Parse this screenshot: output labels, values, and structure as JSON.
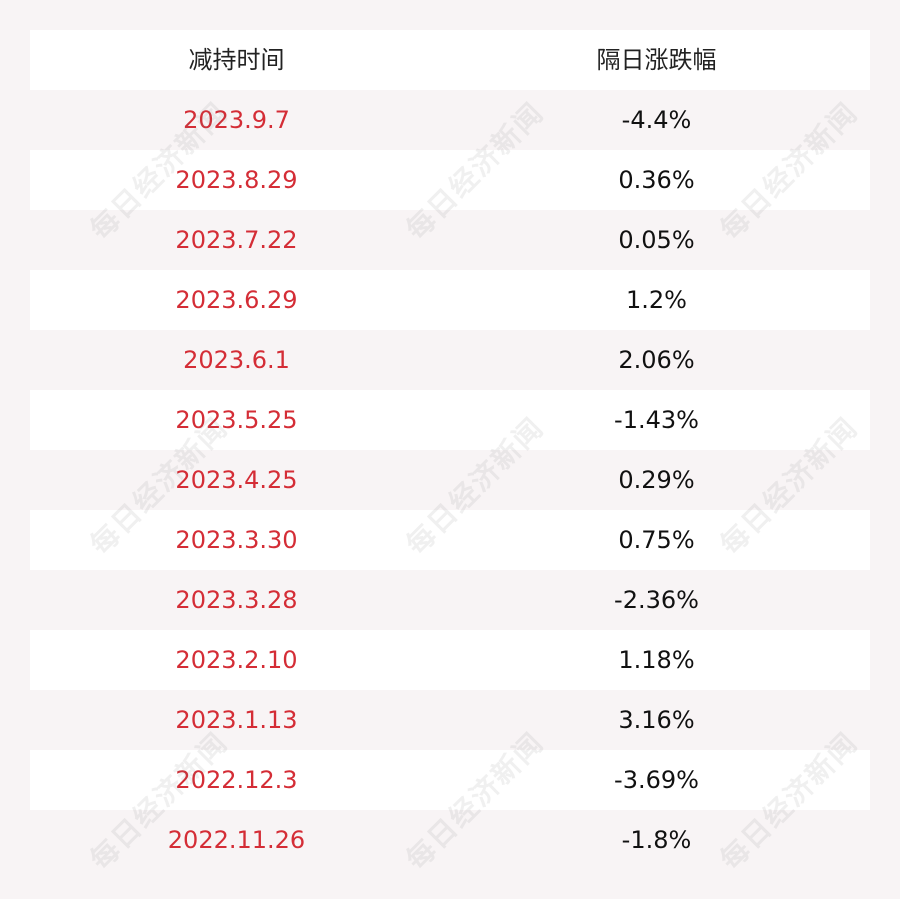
{
  "table": {
    "headers": [
      "减持时间",
      "隔日涨跌幅"
    ],
    "rows": [
      {
        "date": "2023.9.7",
        "change": "-4.4%"
      },
      {
        "date": "2023.8.29",
        "change": "0.36%"
      },
      {
        "date": "2023.7.22",
        "change": "0.05%"
      },
      {
        "date": "2023.6.29",
        "change": "1.2%"
      },
      {
        "date": "2023.6.1",
        "change": "2.06%"
      },
      {
        "date": "2023.5.25",
        "change": "-1.43%"
      },
      {
        "date": "2023.4.25",
        "change": "0.29%"
      },
      {
        "date": "2023.3.30",
        "change": "0.75%"
      },
      {
        "date": "2023.3.28",
        "change": "-2.36%"
      },
      {
        "date": "2023.2.10",
        "change": "1.18%"
      },
      {
        "date": "2023.1.13",
        "change": "3.16%"
      },
      {
        "date": "2022.12.3",
        "change": "-3.69%"
      },
      {
        "date": "2022.11.26",
        "change": "-1.8%"
      }
    ]
  },
  "watermark": {
    "text": "每日经济新闻"
  },
  "colors": {
    "date_text": "#d42d36",
    "value_text": "#111111",
    "stripe": "#f8f4f5",
    "row": "#ffffff"
  }
}
